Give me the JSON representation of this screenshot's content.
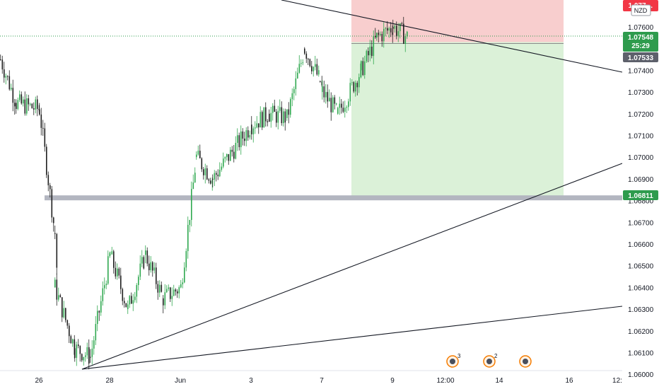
{
  "chart_data": {
    "type": "candlestick",
    "currency_label": "NZD",
    "y_ticks": [
      "1.07600",
      "1.07500",
      "1.07400",
      "1.07300",
      "1.07200",
      "1.07100",
      "1.07000",
      "1.06900",
      "1.06800",
      "1.06700",
      "1.06600",
      "1.06500",
      "1.06400",
      "1.06300",
      "1.06200",
      "1.06100",
      "1.06000"
    ],
    "x_ticks": [
      "26",
      "28",
      "Jun",
      "3",
      "7",
      "9",
      "12:00",
      "14",
      "16",
      "12:"
    ],
    "last_price": "1.07548",
    "countdown": "25:29",
    "bid_price": "1.07533",
    "top_price_partial": "1.077",
    "horizontal_level": "1.06811",
    "ylim": [
      1.06,
      1.078
    ],
    "position": {
      "entry": 1.0753,
      "stop": 1.0776,
      "target": 1.0681
    },
    "price_path": [
      {
        "x": "May 25",
        "y": 1.0745
      },
      {
        "x": "May 25",
        "y": 1.0725
      },
      {
        "x": "May 26",
        "y": 1.0722
      },
      {
        "x": "May 26",
        "y": 1.0665
      },
      {
        "x": "May 26",
        "y": 1.064
      },
      {
        "x": "May 27",
        "y": 1.0612
      },
      {
        "x": "May 27",
        "y": 1.0608
      },
      {
        "x": "May 28",
        "y": 1.0655
      },
      {
        "x": "May 29",
        "y": 1.063
      },
      {
        "x": "May 30",
        "y": 1.0655
      },
      {
        "x": "May 31",
        "y": 1.0635
      },
      {
        "x": "Jun 1",
        "y": 1.064
      },
      {
        "x": "Jun 1",
        "y": 1.07
      },
      {
        "x": "Jun 2",
        "y": 1.069
      },
      {
        "x": "Jun 3",
        "y": 1.0715
      },
      {
        "x": "Jun 4",
        "y": 1.072
      },
      {
        "x": "Jun 5",
        "y": 1.0718
      },
      {
        "x": "Jun 6",
        "y": 1.075
      },
      {
        "x": "Jun 6",
        "y": 1.0735
      },
      {
        "x": "Jun 7",
        "y": 1.073
      },
      {
        "x": "Jun 7",
        "y": 1.072
      },
      {
        "x": "Jun 8",
        "y": 1.074
      },
      {
        "x": "Jun 8",
        "y": 1.0755
      },
      {
        "x": "Jun 9",
        "y": 1.076
      },
      {
        "x": "Jun 9",
        "y": 1.0755
      }
    ],
    "trendlines": [
      {
        "name": "upper descending",
        "from": {
          "x": "May 23",
          "y": 1.0793
        },
        "to": {
          "x": "Jun 16",
          "y": 1.0737
        }
      },
      {
        "name": "rising steep",
        "from": {
          "x": "May 27",
          "y": 1.06
        },
        "to": {
          "x": "Jun 16",
          "y": 1.0695
        }
      },
      {
        "name": "rising shallow",
        "from": {
          "x": "May 27",
          "y": 1.06
        },
        "to": {
          "x": "Jun 16",
          "y": 1.063
        }
      }
    ],
    "event_markers": [
      {
        "icon": "calendar-event-icon",
        "count": "3"
      },
      {
        "icon": "calendar-event-icon",
        "count": "2"
      },
      {
        "icon": "globe-event-icon",
        "count": ""
      }
    ],
    "colors": {
      "up": "#26a69a",
      "up_bar": "#2fa84f",
      "down": "#1f1f1f",
      "stop_zone": "#f7c5c5",
      "target_zone": "#d7f0d4",
      "level": "#b3b6c0",
      "last_price_tag": "#2e9b4d",
      "bid_tag": "#5d606b",
      "top_tag": "#f23645",
      "target_tag": "#2e9b4d"
    }
  }
}
